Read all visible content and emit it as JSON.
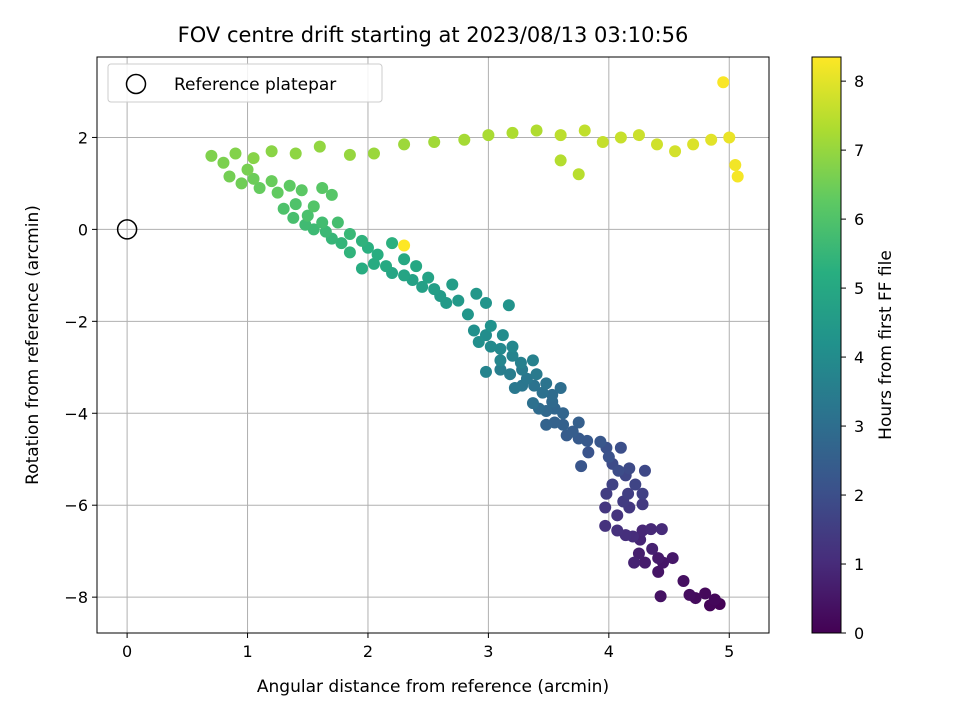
{
  "chart_data": {
    "type": "scatter",
    "title": "FOV centre drift starting at 2023/08/13 03:10:56",
    "xlabel": "Angular distance from reference (arcmin)",
    "ylabel": "Rotation from reference (arcmin)",
    "colorbar_label": "Hours from first FF file",
    "xlim": [
      -0.25,
      5.33
    ],
    "ylim": [
      -8.78,
      3.75
    ],
    "clim": [
      0,
      8.35
    ],
    "x_ticks": [
      "0",
      "1",
      "2",
      "3",
      "4",
      "5"
    ],
    "y_ticks": [
      "−8",
      "−6",
      "−4",
      "−2",
      "0",
      "2"
    ],
    "colorbar_ticks": [
      "0",
      "1",
      "2",
      "3",
      "4",
      "5",
      "6",
      "7",
      "8"
    ],
    "grid": true,
    "colormap": "viridis",
    "legend": {
      "position": "top-left",
      "entries": [
        "Reference platepar"
      ]
    },
    "reference_point": {
      "x": 0,
      "y": 0
    },
    "series": [
      {
        "columns": [
          "x",
          "y",
          "hours"
        ],
        "points": [
          [
            4.92,
            -8.15,
            0.05
          ],
          [
            4.84,
            -8.18,
            0.1
          ],
          [
            4.88,
            -8.05,
            0.15
          ],
          [
            4.8,
            -7.92,
            0.2
          ],
          [
            4.72,
            -8.02,
            0.25
          ],
          [
            4.67,
            -7.95,
            0.3
          ],
          [
            4.62,
            -7.65,
            0.35
          ],
          [
            4.43,
            -7.98,
            0.4
          ],
          [
            4.41,
            -7.45,
            0.45
          ],
          [
            4.45,
            -7.25,
            0.5
          ],
          [
            4.53,
            -7.15,
            0.55
          ],
          [
            4.41,
            -7.15,
            0.6
          ],
          [
            4.3,
            -7.25,
            0.65
          ],
          [
            4.25,
            -7.05,
            0.7
          ],
          [
            4.36,
            -6.95,
            0.75
          ],
          [
            4.21,
            -7.25,
            0.8
          ],
          [
            4.26,
            -6.75,
            0.85
          ],
          [
            4.28,
            -6.55,
            0.9
          ],
          [
            4.35,
            -6.52,
            0.95
          ],
          [
            4.44,
            -6.52,
            1.0
          ],
          [
            4.2,
            -6.68,
            1.05
          ],
          [
            4.14,
            -6.65,
            1.1
          ],
          [
            4.07,
            -6.55,
            1.15
          ],
          [
            3.97,
            -6.45,
            1.2
          ],
          [
            4.07,
            -6.22,
            1.25
          ],
          [
            3.97,
            -6.05,
            1.3
          ],
          [
            4.17,
            -6.05,
            1.35
          ],
          [
            4.28,
            -5.98,
            1.4
          ],
          [
            4.12,
            -5.92,
            1.45
          ],
          [
            3.98,
            -5.75,
            1.5
          ],
          [
            4.16,
            -5.75,
            1.55
          ],
          [
            4.28,
            -5.75,
            1.6
          ],
          [
            4.03,
            -5.55,
            1.65
          ],
          [
            4.22,
            -5.55,
            1.7
          ],
          [
            4.14,
            -5.35,
            1.75
          ],
          [
            4.3,
            -5.25,
            1.8
          ],
          [
            4.17,
            -5.2,
            1.85
          ],
          [
            4.03,
            -5.1,
            1.9
          ],
          [
            4.08,
            -5.25,
            1.95
          ],
          [
            4.1,
            -4.75,
            2.0
          ],
          [
            3.98,
            -4.75,
            2.05
          ],
          [
            4.0,
            -4.95,
            2.1
          ],
          [
            3.83,
            -4.85,
            2.15
          ],
          [
            3.77,
            -5.15,
            2.2
          ],
          [
            3.93,
            -4.62,
            2.25
          ],
          [
            3.82,
            -4.6,
            2.3
          ],
          [
            3.75,
            -4.55,
            2.35
          ],
          [
            3.65,
            -4.48,
            2.4
          ],
          [
            3.7,
            -4.4,
            2.45
          ],
          [
            3.75,
            -4.2,
            2.5
          ],
          [
            3.62,
            -4.25,
            2.55
          ],
          [
            3.55,
            -4.2,
            2.6
          ],
          [
            3.48,
            -4.25,
            2.65
          ],
          [
            3.62,
            -4.0,
            2.7
          ],
          [
            3.55,
            -3.9,
            2.75
          ],
          [
            3.48,
            -3.95,
            2.8
          ],
          [
            3.53,
            -3.75,
            2.85
          ],
          [
            3.42,
            -3.9,
            2.9
          ],
          [
            3.53,
            -3.6,
            2.95
          ],
          [
            3.6,
            -3.45,
            3.0
          ],
          [
            3.37,
            -3.78,
            3.05
          ],
          [
            3.45,
            -3.55,
            3.1
          ],
          [
            3.38,
            -3.4,
            3.15
          ],
          [
            3.48,
            -3.35,
            3.2
          ],
          [
            3.28,
            -3.4,
            3.25
          ],
          [
            3.32,
            -3.25,
            3.3
          ],
          [
            3.22,
            -3.45,
            3.35
          ],
          [
            3.4,
            -3.15,
            3.4
          ],
          [
            3.28,
            -3.05,
            3.45
          ],
          [
            3.18,
            -3.15,
            3.5
          ],
          [
            3.1,
            -3.05,
            3.55
          ],
          [
            3.27,
            -2.9,
            3.6
          ],
          [
            3.37,
            -2.85,
            3.65
          ],
          [
            3.2,
            -2.75,
            3.7
          ],
          [
            2.98,
            -3.1,
            3.75
          ],
          [
            3.1,
            -2.85,
            3.8
          ],
          [
            3.2,
            -2.55,
            3.85
          ],
          [
            3.1,
            -2.6,
            3.9
          ],
          [
            3.02,
            -2.55,
            3.95
          ],
          [
            3.12,
            -2.3,
            4.0
          ],
          [
            2.98,
            -2.3,
            4.05
          ],
          [
            2.92,
            -2.45,
            4.1
          ],
          [
            2.88,
            -2.2,
            4.15
          ],
          [
            3.02,
            -2.1,
            4.2
          ],
          [
            3.17,
            -1.65,
            4.25
          ],
          [
            2.98,
            -1.6,
            4.3
          ],
          [
            2.83,
            -1.85,
            4.35
          ],
          [
            2.9,
            -1.4,
            4.4
          ],
          [
            2.75,
            -1.55,
            4.45
          ],
          [
            2.65,
            -1.6,
            4.5
          ],
          [
            2.6,
            -1.45,
            4.55
          ],
          [
            2.7,
            -1.2,
            4.6
          ],
          [
            2.55,
            -1.3,
            4.65
          ],
          [
            2.45,
            -1.25,
            4.7
          ],
          [
            2.37,
            -1.1,
            4.75
          ],
          [
            2.5,
            -1.05,
            4.8
          ],
          [
            2.3,
            -1.0,
            4.85
          ],
          [
            2.2,
            -0.95,
            4.9
          ],
          [
            2.4,
            -0.8,
            4.95
          ],
          [
            2.3,
            -0.65,
            5.0
          ],
          [
            2.15,
            -0.8,
            5.05
          ],
          [
            2.05,
            -0.75,
            5.1
          ],
          [
            1.95,
            -0.85,
            5.15
          ],
          [
            2.08,
            -0.55,
            5.2
          ],
          [
            2.0,
            -0.4,
            5.25
          ],
          [
            2.2,
            -0.3,
            5.3
          ],
          [
            1.95,
            -0.25,
            5.35
          ],
          [
            1.85,
            -0.5,
            5.4
          ],
          [
            1.78,
            -0.3,
            5.45
          ],
          [
            1.7,
            -0.2,
            5.5
          ],
          [
            1.85,
            -0.1,
            5.55
          ],
          [
            1.65,
            -0.05,
            5.6
          ],
          [
            1.55,
            0.0,
            5.65
          ],
          [
            1.48,
            0.1,
            5.7
          ],
          [
            1.62,
            0.15,
            5.75
          ],
          [
            1.75,
            0.15,
            5.8
          ],
          [
            1.38,
            0.25,
            5.85
          ],
          [
            1.5,
            0.3,
            5.9
          ],
          [
            1.3,
            0.45,
            5.95
          ],
          [
            1.4,
            0.55,
            6.0
          ],
          [
            1.55,
            0.5,
            6.05
          ],
          [
            1.7,
            0.75,
            6.1
          ],
          [
            1.62,
            0.9,
            6.15
          ],
          [
            1.45,
            0.85,
            6.2
          ],
          [
            1.35,
            0.95,
            6.25
          ],
          [
            1.25,
            0.8,
            6.3
          ],
          [
            1.1,
            0.9,
            6.35
          ],
          [
            1.2,
            1.05,
            6.4
          ],
          [
            1.05,
            1.1,
            6.45
          ],
          [
            0.95,
            1.0,
            6.5
          ],
          [
            0.85,
            1.15,
            6.55
          ],
          [
            1.0,
            1.3,
            6.6
          ],
          [
            0.8,
            1.45,
            6.65
          ],
          [
            0.7,
            1.6,
            6.7
          ],
          [
            0.9,
            1.65,
            6.75
          ],
          [
            1.05,
            1.55,
            6.8
          ],
          [
            1.2,
            1.7,
            6.85
          ],
          [
            1.4,
            1.65,
            6.9
          ],
          [
            1.6,
            1.8,
            6.95
          ],
          [
            1.85,
            1.62,
            7.0
          ],
          [
            2.05,
            1.65,
            7.05
          ],
          [
            2.3,
            1.85,
            7.1
          ],
          [
            2.55,
            1.9,
            7.15
          ],
          [
            2.8,
            1.95,
            7.2
          ],
          [
            3.0,
            2.05,
            7.25
          ],
          [
            3.2,
            2.1,
            7.3
          ],
          [
            3.4,
            2.15,
            7.35
          ],
          [
            3.6,
            1.5,
            7.4
          ],
          [
            3.75,
            1.2,
            7.45
          ],
          [
            3.6,
            2.05,
            7.5
          ],
          [
            3.8,
            2.15,
            7.55
          ],
          [
            3.95,
            1.9,
            7.6
          ],
          [
            4.1,
            2.0,
            7.65
          ],
          [
            4.25,
            2.05,
            7.7
          ],
          [
            4.4,
            1.85,
            7.75
          ],
          [
            4.55,
            1.7,
            7.8
          ],
          [
            4.7,
            1.85,
            7.9
          ],
          [
            4.85,
            1.95,
            8.0
          ],
          [
            5.0,
            2.0,
            8.1
          ],
          [
            4.95,
            3.2,
            8.3
          ],
          [
            2.3,
            -0.35,
            8.35
          ],
          [
            5.05,
            1.4,
            8.2
          ],
          [
            5.07,
            1.15,
            8.25
          ]
        ]
      }
    ]
  }
}
